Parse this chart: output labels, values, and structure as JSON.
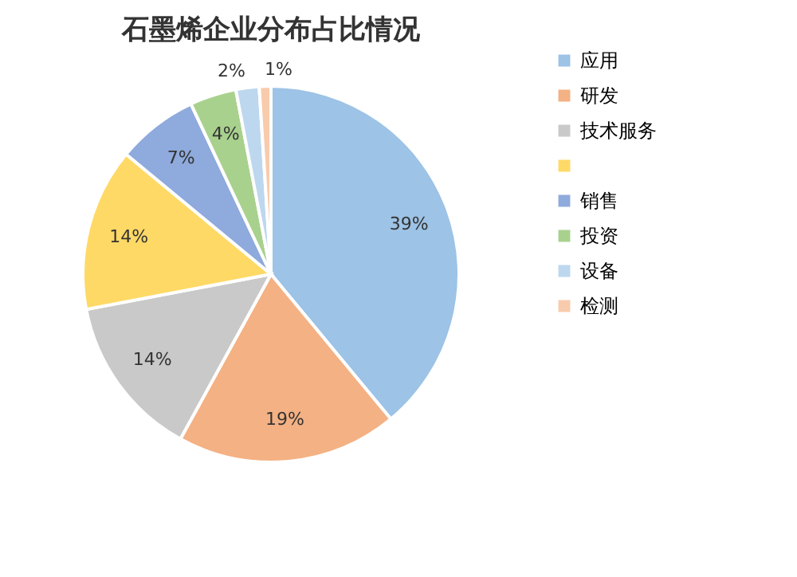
{
  "chart_data": {
    "type": "pie",
    "title": "石墨烯企业分布占比情况",
    "categories": [
      "应用",
      "研发",
      "技术服务",
      null,
      "销售",
      "投资",
      "设备",
      "检测"
    ],
    "values": [
      39,
      19,
      14,
      14,
      7,
      4,
      2,
      1
    ],
    "colors": [
      "#9dc3e6",
      "#f4b183",
      "#c9c9c9",
      "#ffd966",
      "#8faadc",
      "#a9d18e",
      "#bdd7ee",
      "#f8cbad"
    ],
    "value_labels": [
      "39%",
      "19%",
      "14%",
      "14%",
      "7%",
      "4%",
      "2%",
      "1%"
    ],
    "legend": "right"
  }
}
